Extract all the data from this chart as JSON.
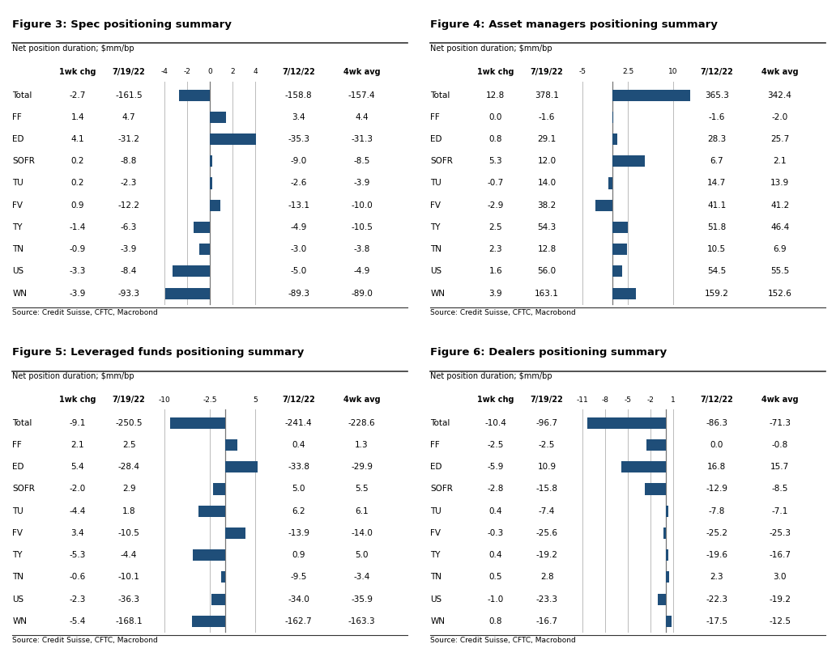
{
  "fig3": {
    "title": "Figure 3: Spec positioning summary",
    "subtitle": "Net position duration; $mm/bp",
    "bar_color": "#1f4e79",
    "categories": [
      "Total",
      "FF",
      "ED",
      "SOFR",
      "TU",
      "FV",
      "TY",
      "TN",
      "US",
      "WN"
    ],
    "wk1_chg": [
      "-2.7",
      "1.4",
      "4.1",
      "0.2",
      "0.2",
      "0.9",
      "-1.4",
      "-0.9",
      "-3.3",
      "-3.9"
    ],
    "pos_719": [
      "-161.5",
      "4.7",
      "-31.2",
      "-8.8",
      "-2.3",
      "-12.2",
      "-6.3",
      "-3.9",
      "-8.4",
      "-93.3"
    ],
    "bar_values": [
      -2.7,
      1.4,
      4.1,
      0.2,
      0.2,
      0.9,
      -1.4,
      -0.9,
      -3.3,
      -3.9
    ],
    "xlim": [
      -4,
      4
    ],
    "xticks": [
      -4,
      -2,
      0,
      2,
      4
    ],
    "pos_712": [
      "-158.8",
      "3.4",
      "-35.3",
      "-9.0",
      "-2.6",
      "-13.1",
      "-4.9",
      "-3.0",
      "-5.0",
      "-89.3"
    ],
    "wk4_avg": [
      "-157.4",
      "4.4",
      "-31.3",
      "-8.5",
      "-3.9",
      "-10.0",
      "-10.5",
      "-3.8",
      "-4.9",
      "-89.0"
    ],
    "source": "Source: Credit Suisse, CFTC, Macrobond"
  },
  "fig4": {
    "title": "Figure 4: Asset managers positioning summary",
    "subtitle": "Net position duration; $mm/bp",
    "bar_color": "#1f4e79",
    "categories": [
      "Total",
      "FF",
      "ED",
      "SOFR",
      "TU",
      "FV",
      "TY",
      "TN",
      "US",
      "WN"
    ],
    "wk1_chg": [
      "12.8",
      "0.0",
      "0.8",
      "5.3",
      "-0.7",
      "-2.9",
      "2.5",
      "2.3",
      "1.6",
      "3.9"
    ],
    "pos_719": [
      "378.1",
      "-1.6",
      "29.1",
      "12.0",
      "14.0",
      "38.2",
      "54.3",
      "12.8",
      "56.0",
      "163.1"
    ],
    "bar_values": [
      12.8,
      0.0,
      0.8,
      5.3,
      -0.7,
      -2.9,
      2.5,
      2.3,
      1.6,
      3.9
    ],
    "xlim": [
      -5.0,
      10.0
    ],
    "xticks": [
      -5.0,
      2.5,
      10.0
    ],
    "pos_712": [
      "365.3",
      "-1.6",
      "28.3",
      "6.7",
      "14.7",
      "41.1",
      "51.8",
      "10.5",
      "54.5",
      "159.2"
    ],
    "wk4_avg": [
      "342.4",
      "-2.0",
      "25.7",
      "2.1",
      "13.9",
      "41.2",
      "46.4",
      "6.9",
      "55.5",
      "152.6"
    ],
    "source": "Source: Credit Suisse, CFTC, Macrobond"
  },
  "fig5": {
    "title": "Figure 5: Leveraged funds positioning summary",
    "subtitle": "Net position duration; $mm/bp",
    "bar_color": "#1f4e79",
    "categories": [
      "Total",
      "FF",
      "ED",
      "SOFR",
      "TU",
      "FV",
      "TY",
      "TN",
      "US",
      "WN"
    ],
    "wk1_chg": [
      "-9.1",
      "2.1",
      "5.4",
      "-2.0",
      "-4.4",
      "3.4",
      "-5.3",
      "-0.6",
      "-2.3",
      "-5.4"
    ],
    "pos_719": [
      "-250.5",
      "2.5",
      "-28.4",
      "2.9",
      "1.8",
      "-10.5",
      "-4.4",
      "-10.1",
      "-36.3",
      "-168.1"
    ],
    "bar_values": [
      -9.1,
      2.1,
      5.4,
      -2.0,
      -4.4,
      3.4,
      -5.3,
      -0.6,
      -2.3,
      -5.4
    ],
    "xlim": [
      -10.0,
      5.0
    ],
    "xticks": [
      -10.0,
      -2.5,
      5.0
    ],
    "pos_712": [
      "-241.4",
      "0.4",
      "-33.8",
      "5.0",
      "6.2",
      "-13.9",
      "0.9",
      "-9.5",
      "-34.0",
      "-162.7"
    ],
    "wk4_avg": [
      "-228.6",
      "1.3",
      "-29.9",
      "5.5",
      "6.1",
      "-14.0",
      "5.0",
      "-3.4",
      "-35.9",
      "-163.3"
    ],
    "source": "Source: Credit Suisse, CFTC, Macrobond"
  },
  "fig6": {
    "title": "Figure 6: Dealers positioning summary",
    "subtitle": "Net position duration; $mm/bp",
    "bar_color": "#1f4e79",
    "categories": [
      "Total",
      "FF",
      "ED",
      "SOFR",
      "TU",
      "FV",
      "TY",
      "TN",
      "US",
      "WN"
    ],
    "wk1_chg": [
      "-10.4",
      "-2.5",
      "-5.9",
      "-2.8",
      "0.4",
      "-0.3",
      "0.4",
      "0.5",
      "-1.0",
      "0.8"
    ],
    "pos_719": [
      "-96.7",
      "-2.5",
      "10.9",
      "-15.8",
      "-7.4",
      "-25.6",
      "-19.2",
      "2.8",
      "-23.3",
      "-16.7"
    ],
    "bar_values": [
      -10.4,
      -2.5,
      -5.9,
      -2.8,
      0.4,
      -0.3,
      0.4,
      0.5,
      -1.0,
      0.8
    ],
    "xlim": [
      -11,
      1
    ],
    "xticks": [
      -11,
      -8,
      -5,
      -2,
      1
    ],
    "pos_712": [
      "-86.3",
      "0.0",
      "16.8",
      "-12.9",
      "-7.8",
      "-25.2",
      "-19.6",
      "2.3",
      "-22.3",
      "-17.5"
    ],
    "wk4_avg": [
      "-71.3",
      "-0.8",
      "15.7",
      "-8.5",
      "-7.1",
      "-25.3",
      "-16.7",
      "3.0",
      "-19.2",
      "-12.5"
    ],
    "source": "Source: Credit Suisse, CFTC, Macrobond"
  },
  "bg_color": "#ffffff",
  "text_color": "#000000",
  "grid_color": "#bbbbbb"
}
